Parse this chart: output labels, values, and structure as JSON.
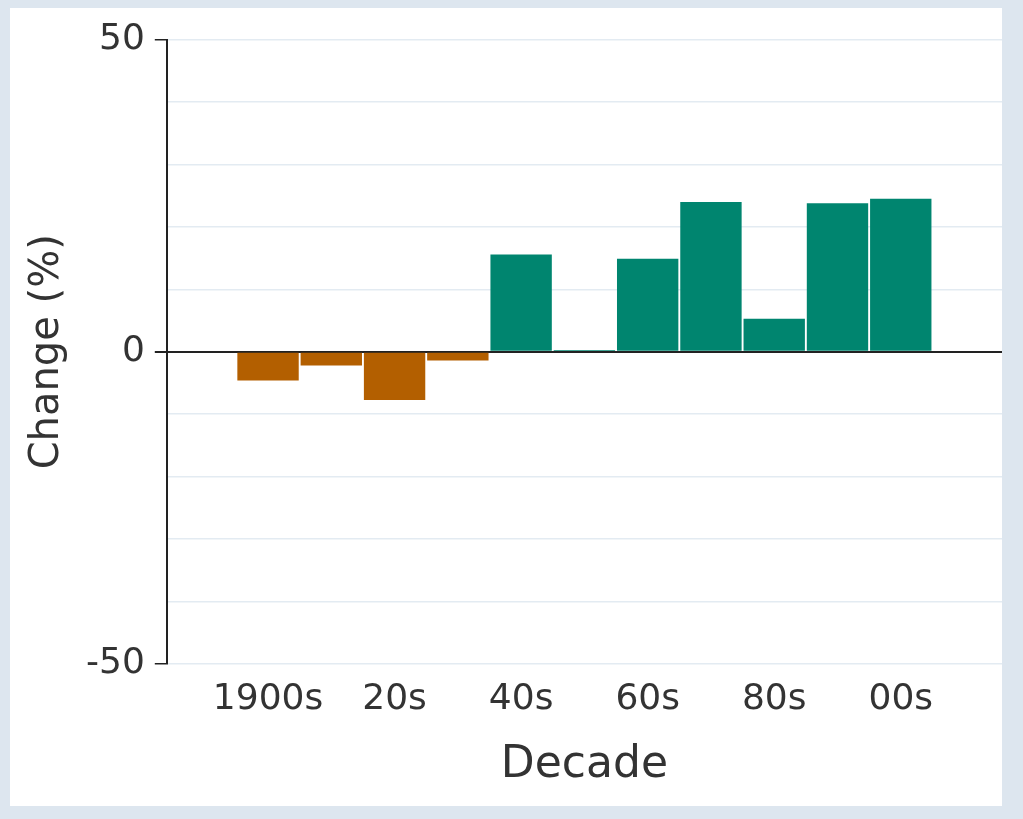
{
  "chart_data": {
    "type": "bar",
    "xlabel": "Decade",
    "ylabel": "Change (%)",
    "categories": [
      "1900s",
      null,
      "20s",
      null,
      "40s",
      null,
      "60s",
      null,
      "80s",
      null,
      "00s"
    ],
    "values": [
      -4.6,
      -2.2,
      -7.7,
      -1.4,
      15.6,
      0.3,
      14.9,
      24.0,
      5.3,
      23.8,
      24.5
    ],
    "colors": [
      "#b35f00",
      "#b35f00",
      "#b35f00",
      "#b35f00",
      "#00856f",
      "#00856f",
      "#00856f",
      "#00856f",
      "#00856f",
      "#00856f",
      "#00856f"
    ],
    "ylim": [
      -50,
      50
    ],
    "yticks": [
      -50,
      {
        "value": -40,
        "label": null
      },
      {
        "value": -30,
        "label": null
      },
      {
        "value": -20,
        "label": null
      },
      {
        "value": -10,
        "label": null
      },
      0,
      {
        "value": 10,
        "label": null
      },
      {
        "value": 20,
        "label": null
      },
      {
        "value": 30,
        "label": null
      },
      {
        "value": 40,
        "label": null
      },
      50
    ],
    "grid": "y",
    "legend": false
  }
}
